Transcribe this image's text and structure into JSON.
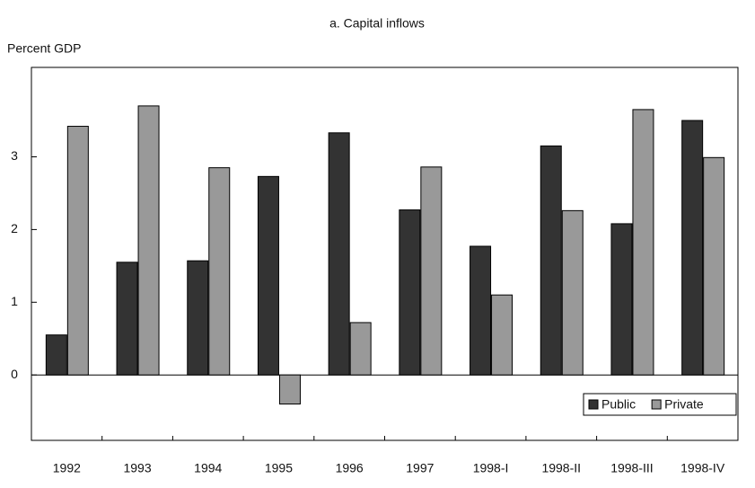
{
  "chart_data": {
    "type": "bar",
    "title": "a. Capital inflows",
    "y_label": "Percent GDP",
    "categories": [
      "1992",
      "1993",
      "1994",
      "1995",
      "1996",
      "1997",
      "1998-I",
      "1998-II",
      "1998-III",
      "1998-IV"
    ],
    "series": [
      {
        "name": "Public",
        "color": "#333333",
        "values": [
          0.55,
          1.55,
          1.57,
          2.73,
          3.33,
          2.27,
          1.77,
          3.15,
          2.08,
          3.5
        ]
      },
      {
        "name": "Private",
        "color": "#999999",
        "values": [
          3.42,
          3.7,
          2.85,
          -0.4,
          0.72,
          2.86,
          1.1,
          2.26,
          3.65,
          2.99
        ]
      }
    ],
    "ylim": [
      -0.9,
      4.23
    ],
    "yticks": [
      0,
      1,
      2,
      3
    ],
    "legend": "lower right"
  }
}
